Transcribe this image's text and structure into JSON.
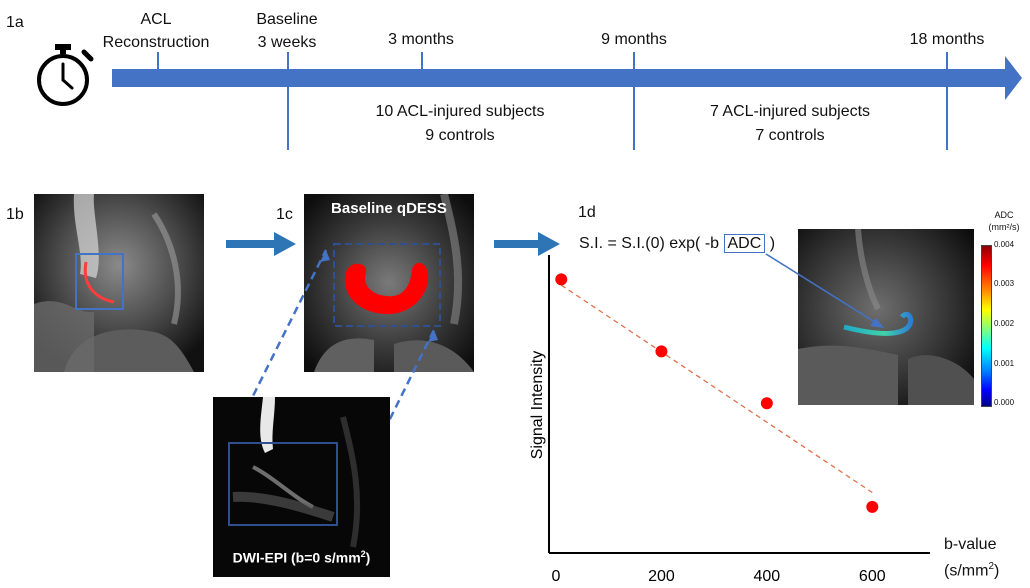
{
  "panels": {
    "a": "1a",
    "b": "1b",
    "c": "1c",
    "d": "1d"
  },
  "timeline": {
    "events": [
      {
        "line1": "ACL",
        "line2": "Reconstruction"
      },
      {
        "line1": "Baseline",
        "line2": "3 weeks"
      },
      {
        "line1": "3 months",
        "line2": ""
      },
      {
        "line1": "9 months",
        "line2": ""
      },
      {
        "line1": "18 months",
        "line2": ""
      }
    ],
    "cohorts": [
      {
        "line1": "10 ACL-injured subjects",
        "line2": "9 controls"
      },
      {
        "line1": "7 ACL-injured subjects",
        "line2": "7 controls"
      }
    ],
    "arrow_color": "#4472c4"
  },
  "images": {
    "c_title": "Baseline qDESS",
    "dwi_label_prefix": "DWI-EPI (b=0 s/mm",
    "dwi_label_sup": "2",
    "dwi_label_suffix": ")"
  },
  "equation": {
    "prefix": "S.I. = S.I.(0) exp( -b",
    "boxed": "ADC",
    "suffix": ")"
  },
  "colorbar": {
    "title_line1": "ADC",
    "title_line2": "(mm²/s)",
    "ticks": [
      "0.004",
      "0.003",
      "0.002",
      "0.001",
      "0.000"
    ]
  },
  "chart_data": {
    "type": "scatter",
    "title": "",
    "xlabel": "b-value",
    "xlabel_unit_prefix": "(s/mm",
    "xlabel_unit_sup": "2",
    "xlabel_unit_suffix": ")",
    "ylabel": "Signal Intensity",
    "x_ticks": [
      "0",
      "200",
      "400",
      "600"
    ],
    "xlim": [
      0,
      700
    ],
    "ylim": [
      0,
      1
    ],
    "points": [
      {
        "x": 10,
        "y": 0.95
      },
      {
        "x": 200,
        "y": 0.7
      },
      {
        "x": 400,
        "y": 0.52
      },
      {
        "x": 600,
        "y": 0.16
      }
    ],
    "fit_line": [
      {
        "x": 10,
        "y": 0.93
      },
      {
        "x": 600,
        "y": 0.21
      }
    ],
    "point_color": "#ff0000",
    "fit_color": "#e0704a"
  }
}
